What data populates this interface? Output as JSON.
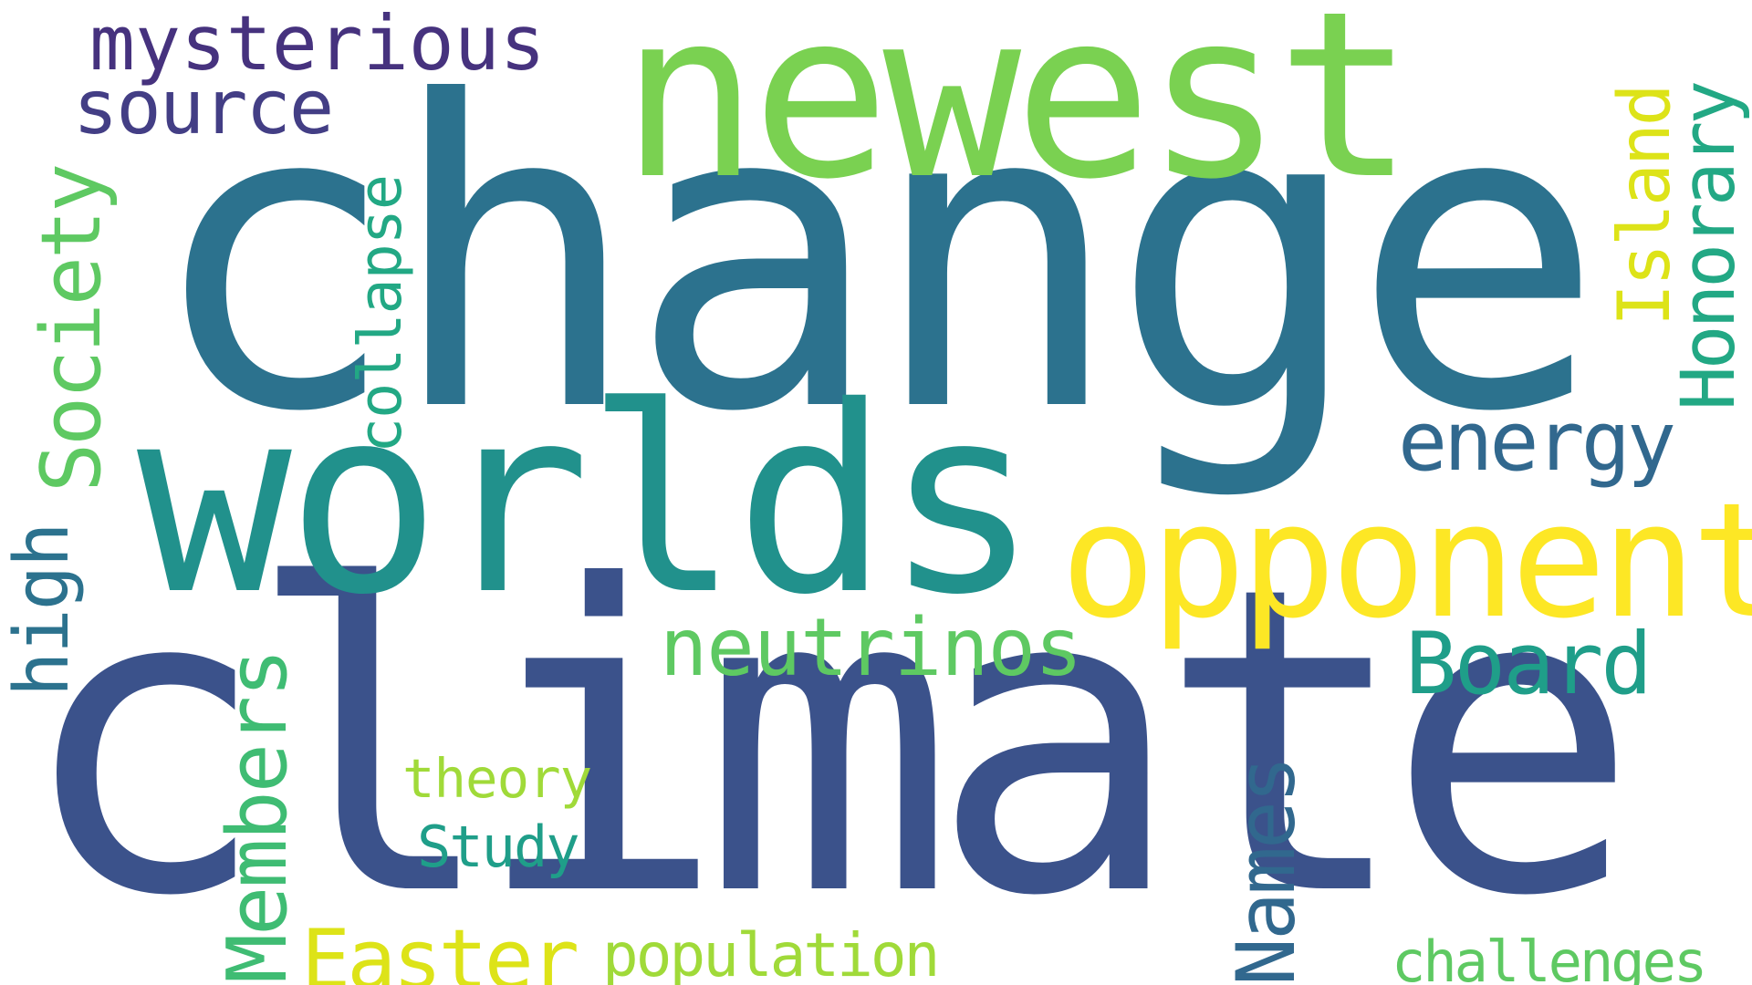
{
  "words": {
    "climate": {
      "text": "climate",
      "color": "#3b528b"
    },
    "change": {
      "text": "change",
      "color": "#2c728e"
    },
    "worlds": {
      "text": "worlds",
      "color": "#21918c"
    },
    "newest": {
      "text": "newest",
      "color": "#7ad151"
    },
    "opponent": {
      "text": "opponent",
      "color": "#fde725"
    },
    "neutrinos": {
      "text": "neutrinos",
      "color": "#5ec962"
    },
    "mysterious": {
      "text": "mysterious",
      "color": "#46327e"
    },
    "source": {
      "text": "source",
      "color": "#433e85"
    },
    "society": {
      "text": "Society",
      "color": "#5ec962"
    },
    "collapse": {
      "text": "collapse",
      "color": "#22a884"
    },
    "high": {
      "text": "high",
      "color": "#2c728e"
    },
    "members": {
      "text": "Members",
      "color": "#3fbc73"
    },
    "easter": {
      "text": "Easter",
      "color": "#dde318"
    },
    "population": {
      "text": "population",
      "color": "#a0da39"
    },
    "theory": {
      "text": "theory",
      "color": "#a0da39"
    },
    "study": {
      "text": "Study",
      "color": "#1f9e89"
    },
    "names": {
      "text": "Names",
      "color": "#31688e"
    },
    "board": {
      "text": "Board",
      "color": "#1f9e89"
    },
    "energy": {
      "text": "energy",
      "color": "#31688e"
    },
    "island": {
      "text": "Island",
      "color": "#dde318"
    },
    "honorary": {
      "text": "Honorary",
      "color": "#22a884"
    },
    "challenges": {
      "text": "challenges",
      "color": "#5ec962"
    }
  }
}
